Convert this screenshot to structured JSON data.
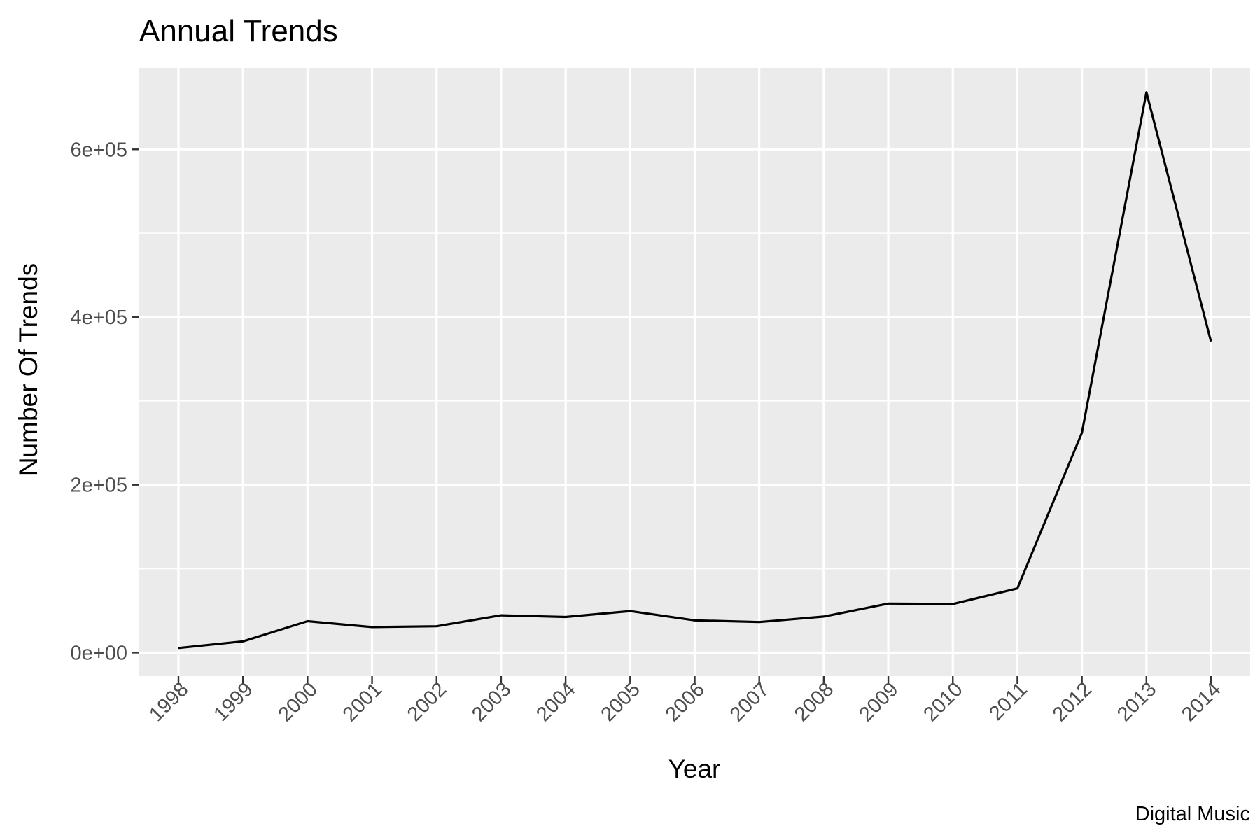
{
  "chart_data": {
    "type": "line",
    "title": "Annual Trends",
    "xlabel": "Year",
    "ylabel": "Number Of Trends",
    "caption": "Digital Music",
    "x": [
      "1998",
      "1999",
      "2000",
      "2001",
      "2002",
      "2003",
      "2004",
      "2005",
      "2006",
      "2007",
      "2008",
      "2009",
      "2010",
      "2011",
      "2012",
      "2013",
      "2014"
    ],
    "series": [
      {
        "values": [
          5500,
          13500,
          37500,
          30500,
          31500,
          44500,
          42500,
          49500,
          38500,
          36500,
          43000,
          58500,
          58000,
          76500,
          262000,
          668000,
          371000
        ]
      }
    ],
    "ylim": [
      -28000,
      697000
    ],
    "yticks": [
      0,
      200000,
      400000,
      600000
    ],
    "ytick_labels": [
      "0e+00",
      "2e+05",
      "4e+05",
      "6e+05"
    ],
    "grid": true,
    "colors": {
      "panel": "#ebebeb",
      "grid": "#ffffff",
      "line": "#000000",
      "tick": "#333333",
      "tick_text": "#4d4d4d"
    }
  }
}
